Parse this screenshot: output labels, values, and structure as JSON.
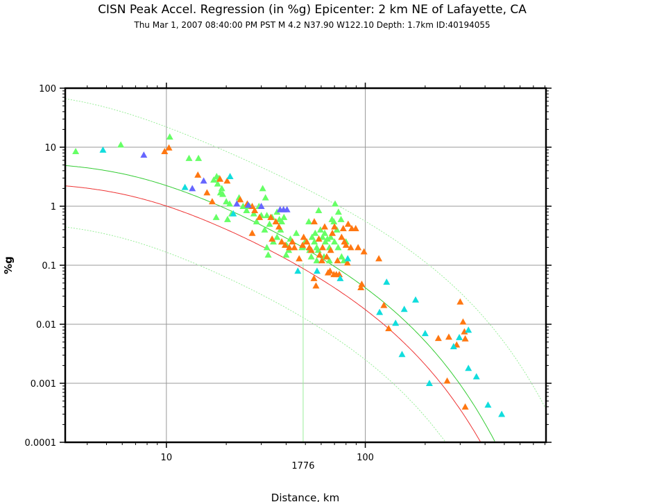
{
  "header": {
    "title": "CISN Peak Accel. Regression (in %g) Epicenter: 2 km NE of  Lafayette, CA",
    "subtitle": "Thu Mar  1, 2007 08:40:00 PM PST   M 4.2   N37.90 W122.10   Depth: 1.7km   ID:40194055"
  },
  "chart_data": {
    "type": "scatter",
    "xlabel": "Distance, km",
    "ylabel": "%g",
    "xscale": "log",
    "yscale": "log",
    "xlim": [
      3.1,
      810
    ],
    "ylim": [
      0.0001,
      100
    ],
    "grid": true,
    "xticks": [
      {
        "value": 10,
        "label": "10"
      },
      {
        "value": 100,
        "label": "100"
      }
    ],
    "yticks": [
      {
        "value": 100,
        "label": "100"
      },
      {
        "value": 10,
        "label": "10"
      },
      {
        "value": 1,
        "label": "1"
      },
      {
        "value": 0.1,
        "label": "0.1"
      },
      {
        "value": 0.01,
        "label": "0.01"
      },
      {
        "value": 0.001,
        "label": "0.001"
      },
      {
        "value": 0.0001,
        "label": "0.0001"
      }
    ],
    "annotation": {
      "x": 48.7,
      "label": "1776"
    },
    "colors": {
      "green": "#66ff66",
      "orange": "#ff7711",
      "cyan": "#11dddd",
      "blue": "#6666ff",
      "regression_green": "#33cc33",
      "regression_red": "#ee3333",
      "bound_green": "#99ee99"
    },
    "series": [
      {
        "color": "green",
        "points": [
          [
            3.5,
            8.5
          ],
          [
            5.9,
            11.0
          ],
          [
            10.4,
            15.0
          ],
          [
            13.0,
            6.5
          ],
          [
            14.5,
            6.5
          ],
          [
            17.3,
            2.8
          ],
          [
            17.9,
            3.2
          ],
          [
            18.4,
            3.0
          ],
          [
            18.1,
            2.4
          ],
          [
            19.0,
            2.0
          ],
          [
            18.7,
            1.7
          ],
          [
            19.2,
            1.6
          ],
          [
            20.0,
            1.2
          ],
          [
            20.8,
            1.1
          ],
          [
            21.3,
            0.75
          ],
          [
            17.8,
            0.65
          ],
          [
            20.3,
            0.6
          ],
          [
            23.2,
            1.4
          ],
          [
            24.3,
            1.0
          ],
          [
            25.3,
            0.85
          ],
          [
            26.2,
            1.0
          ],
          [
            27.5,
            0.75
          ],
          [
            28.4,
            0.55
          ],
          [
            29.2,
            1.0
          ],
          [
            30.5,
            2.0
          ],
          [
            31.5,
            1.4
          ],
          [
            32.0,
            0.7
          ],
          [
            30.0,
            0.7
          ],
          [
            31.2,
            0.4
          ],
          [
            33.0,
            0.5
          ],
          [
            34.0,
            0.65
          ],
          [
            36.0,
            0.8
          ],
          [
            37.0,
            0.6
          ],
          [
            38.0,
            0.55
          ],
          [
            39.0,
            0.65
          ],
          [
            37.5,
            0.4
          ],
          [
            36.0,
            0.3
          ],
          [
            34.5,
            0.25
          ],
          [
            32.0,
            0.2
          ],
          [
            32.5,
            0.15
          ],
          [
            38.0,
            0.25
          ],
          [
            40.2,
            0.22
          ],
          [
            41.2,
            0.18
          ],
          [
            42.0,
            0.28
          ],
          [
            40.0,
            0.15
          ],
          [
            45.0,
            0.35
          ],
          [
            49.8,
            0.25
          ],
          [
            52.0,
            0.55
          ],
          [
            54.0,
            0.3
          ],
          [
            55.5,
            0.25
          ],
          [
            56.0,
            0.35
          ],
          [
            57.0,
            0.2
          ],
          [
            58.3,
            0.85
          ],
          [
            59.5,
            0.4
          ],
          [
            61.0,
            0.3
          ],
          [
            62.5,
            0.35
          ],
          [
            63.0,
            0.25
          ],
          [
            64.5,
            0.28
          ],
          [
            66.0,
            0.2
          ],
          [
            68.0,
            0.6
          ],
          [
            69.5,
            0.55
          ],
          [
            70.5,
            1.1
          ],
          [
            72.0,
            0.4
          ],
          [
            73.3,
            0.8
          ],
          [
            75.5,
            0.6
          ],
          [
            58.0,
            0.18
          ],
          [
            62.0,
            0.14
          ],
          [
            66.0,
            0.12
          ],
          [
            67.0,
            0.3
          ],
          [
            70.0,
            0.25
          ],
          [
            73.0,
            0.2
          ],
          [
            76.0,
            0.14
          ],
          [
            78.0,
            0.12
          ],
          [
            80.0,
            0.25
          ],
          [
            57.0,
            0.12
          ],
          [
            53.5,
            0.14
          ],
          [
            52.5,
            0.18
          ],
          [
            48.0,
            0.2
          ]
        ]
      },
      {
        "color": "orange",
        "points": [
          [
            9.8,
            8.5
          ],
          [
            10.3,
            9.8
          ],
          [
            14.4,
            3.4
          ],
          [
            16.0,
            1.7
          ],
          [
            17.0,
            1.2
          ],
          [
            18.6,
            2.9
          ],
          [
            20.2,
            2.7
          ],
          [
            23.5,
            1.3
          ],
          [
            25.5,
            1.1
          ],
          [
            27.0,
            1.0
          ],
          [
            27.8,
            0.85
          ],
          [
            29.4,
            0.65
          ],
          [
            27.0,
            0.35
          ],
          [
            33.5,
            0.65
          ],
          [
            35.5,
            0.55
          ],
          [
            34.0,
            0.28
          ],
          [
            36.8,
            0.45
          ],
          [
            38.0,
            0.25
          ],
          [
            39.5,
            0.22
          ],
          [
            41.5,
            0.2
          ],
          [
            43.0,
            0.25
          ],
          [
            44.0,
            0.2
          ],
          [
            46.5,
            0.13
          ],
          [
            48.4,
            0.22
          ],
          [
            49.0,
            0.3
          ],
          [
            50.8,
            0.25
          ],
          [
            52.3,
            0.2
          ],
          [
            53.5,
            0.18
          ],
          [
            55.4,
            0.55
          ],
          [
            55.2,
            0.06
          ],
          [
            56.5,
            0.045
          ],
          [
            58.4,
            0.28
          ],
          [
            59.0,
            0.15
          ],
          [
            60.5,
            0.12
          ],
          [
            61.0,
            0.2
          ],
          [
            62.5,
            0.45
          ],
          [
            64.0,
            0.14
          ],
          [
            65.0,
            0.075
          ],
          [
            66.5,
            0.08
          ],
          [
            67.0,
            0.18
          ],
          [
            68.3,
            0.35
          ],
          [
            69.5,
            0.07
          ],
          [
            70.0,
            0.45
          ],
          [
            71.5,
            0.07
          ],
          [
            72.5,
            0.12
          ],
          [
            74.0,
            0.07
          ],
          [
            76.0,
            0.3
          ],
          [
            77.5,
            0.42
          ],
          [
            78.5,
            0.25
          ],
          [
            80.0,
            0.22
          ],
          [
            81.3,
            0.11
          ],
          [
            82.0,
            0.5
          ],
          [
            84.5,
            0.2
          ],
          [
            85.5,
            0.42
          ],
          [
            89.5,
            0.42
          ],
          [
            92.0,
            0.2
          ],
          [
            95.0,
            0.042
          ],
          [
            96.0,
            0.048
          ],
          [
            98.5,
            0.17
          ],
          [
            117.0,
            0.13
          ],
          [
            124.0,
            0.021
          ],
          [
            131.0,
            0.0085
          ],
          [
            233.0,
            0.0058
          ],
          [
            263.0,
            0.0061
          ],
          [
            258.0,
            0.0011
          ],
          [
            288.0,
            0.0045
          ],
          [
            300.0,
            0.024
          ],
          [
            310.0,
            0.011
          ],
          [
            315.0,
            0.0075
          ],
          [
            318.0,
            0.0057
          ],
          [
            318.0,
            0.0004
          ]
        ]
      },
      {
        "color": "cyan",
        "points": [
          [
            4.8,
            9.0
          ],
          [
            12.4,
            2.1
          ],
          [
            20.9,
            3.2
          ],
          [
            21.7,
            0.75
          ],
          [
            45.8,
            0.08
          ],
          [
            57.2,
            0.08
          ],
          [
            74.8,
            0.06
          ],
          [
            81.6,
            0.13
          ],
          [
            118.0,
            0.016
          ],
          [
            128.0,
            0.052
          ],
          [
            142.0,
            0.0105
          ],
          [
            153.0,
            0.0031
          ],
          [
            157.0,
            0.018
          ],
          [
            179.0,
            0.026
          ],
          [
            200.0,
            0.007
          ],
          [
            210.0,
            0.001
          ],
          [
            278.0,
            0.0042
          ],
          [
            297.0,
            0.006
          ],
          [
            330.0,
            0.008
          ],
          [
            330.0,
            0.0018
          ],
          [
            362.0,
            0.0013
          ],
          [
            414.0,
            0.00043
          ],
          [
            485.0,
            0.0003
          ]
        ]
      },
      {
        "color": "blue",
        "points": [
          [
            7.7,
            7.4
          ],
          [
            13.5,
            2.0
          ],
          [
            15.4,
            2.7
          ],
          [
            22.6,
            1.1
          ],
          [
            25.8,
            1.05
          ],
          [
            30.0,
            1.0
          ],
          [
            37.3,
            0.88
          ],
          [
            38.8,
            0.88
          ],
          [
            40.4,
            0.88
          ]
        ]
      }
    ]
  }
}
